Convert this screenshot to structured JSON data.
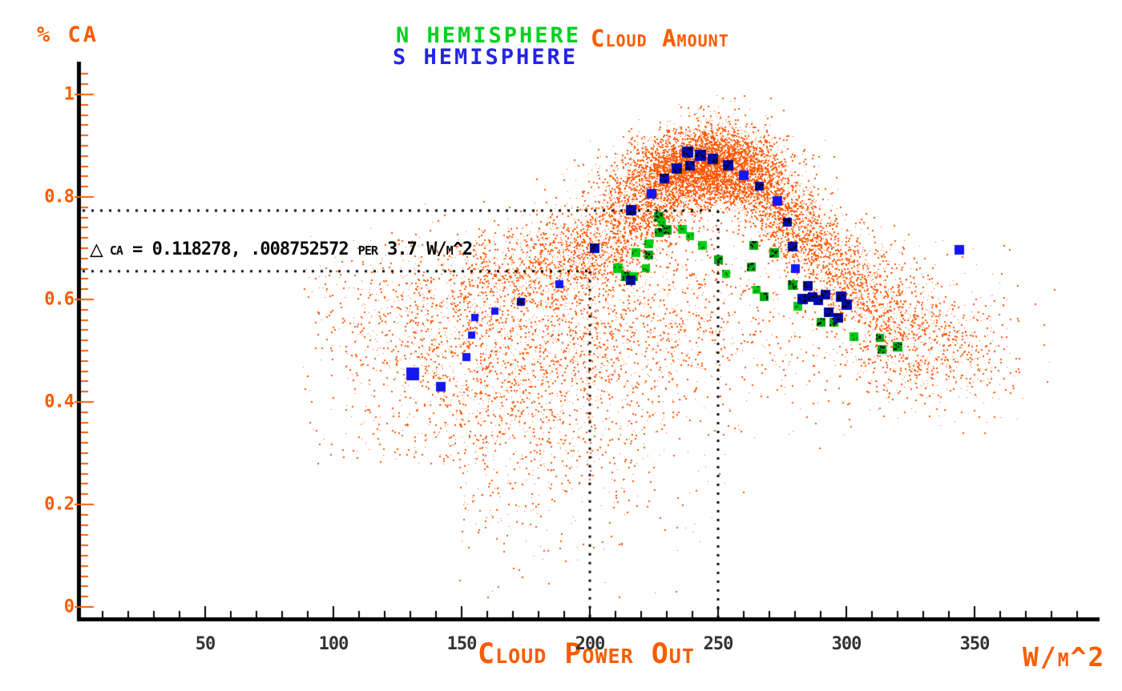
{
  "header": {
    "percent_ca": "% CA",
    "legend_n": "N HEMISPHERE",
    "legend_s": "S HEMISPHERE",
    "title": "Cloud Amount"
  },
  "annotation": {
    "delta_icon": "△",
    "text": "ca = 0.118278, .008752572 per 3.7 W/m^2"
  },
  "x_axis": {
    "label": "Cloud Power Out",
    "unit": "W/m^2",
    "major_ticks": [
      {
        "value": 50,
        "label": "50"
      },
      {
        "value": 100,
        "label": "100"
      },
      {
        "value": 150,
        "label": "150"
      },
      {
        "value": 200,
        "label": "200"
      },
      {
        "value": 250,
        "label": "250"
      },
      {
        "value": 300,
        "label": "300"
      },
      {
        "value": 350,
        "label": "350"
      }
    ],
    "minor_step": 10,
    "range": [
      0,
      398
    ]
  },
  "y_axis": {
    "label": "% CA",
    "major_ticks": [
      {
        "value": 1,
        "label": "1"
      },
      {
        "value": 0.8,
        "label": "0.8"
      },
      {
        "value": 0.6,
        "label": "0.6"
      },
      {
        "value": 0.4,
        "label": "0.4"
      },
      {
        "value": 0.2,
        "label": "0.2"
      },
      {
        "value": 0,
        "label": "0"
      }
    ],
    "minor_step": 0.02,
    "range": [
      0,
      1.06
    ]
  },
  "colors": {
    "orange_text": "#f95c00",
    "orange_dots": "#ff5500",
    "green_bright": "#00cc11",
    "green_dark": "#00a60e",
    "blue_bright": "#1616f2",
    "blue_dark": "#0008b0",
    "axis": "#000000",
    "dotted_line": "#0a0a0a",
    "x_tick_label": "#333333"
  },
  "chart_data": {
    "type": "scatter",
    "title": "Cloud Amount",
    "xlabel": "Cloud Power Out (W/m^2)",
    "ylabel": "% CA",
    "xlim": [
      0,
      398
    ],
    "ylim": [
      0,
      1.06
    ],
    "grid": false,
    "legend_position": "top-center",
    "annotation_guides": {
      "y_top": 0.7734,
      "y_bottom": 0.6552,
      "x_left": 200,
      "x_right": 250,
      "meaning": "delta CA = 0.118278 between CA at 250 and 200 W/m^2"
    },
    "series": [
      {
        "name": "N HEMISPHERE",
        "marker": "square",
        "color": "#00cc11",
        "dark_color": "#00a60e",
        "points": [
          [
            211,
            0.661,
            12,
            0
          ],
          [
            214,
            0.645,
            12,
            1
          ],
          [
            217,
            0.645,
            11,
            0
          ],
          [
            218,
            0.692,
            11,
            0
          ],
          [
            222,
            0.661,
            10,
            0
          ],
          [
            223,
            0.687,
            11,
            1
          ],
          [
            223,
            0.708,
            11,
            0
          ],
          [
            227,
            0.731,
            11,
            1
          ],
          [
            227,
            0.761,
            12,
            1
          ],
          [
            228,
            0.75,
            10,
            0
          ],
          [
            230,
            0.736,
            12,
            1
          ],
          [
            236,
            0.736,
            11,
            0
          ],
          [
            239,
            0.723,
            10,
            0
          ],
          [
            244,
            0.705,
            11,
            0
          ],
          [
            250,
            0.677,
            11,
            1
          ],
          [
            253,
            0.65,
            10,
            0
          ],
          [
            263,
            0.664,
            11,
            1
          ],
          [
            264,
            0.705,
            11,
            1
          ],
          [
            265,
            0.619,
            10,
            0
          ],
          [
            268,
            0.605,
            11,
            1
          ],
          [
            272,
            0.69,
            12,
            1
          ],
          [
            279,
            0.628,
            12,
            1
          ],
          [
            281,
            0.586,
            11,
            0
          ],
          [
            290,
            0.556,
            11,
            1
          ],
          [
            295,
            0.556,
            11,
            1
          ],
          [
            303,
            0.528,
            11,
            0
          ],
          [
            313,
            0.525,
            10,
            1
          ],
          [
            314,
            0.502,
            11,
            1
          ],
          [
            320,
            0.508,
            12,
            1
          ]
        ]
      },
      {
        "name": "S HEMISPHERE",
        "marker": "square",
        "color": "#1616f2",
        "dark_color": "#0008b0",
        "points": [
          [
            131,
            0.455,
            16,
            0
          ],
          [
            142,
            0.43,
            12,
            0
          ],
          [
            152,
            0.488,
            10,
            0
          ],
          [
            154,
            0.53,
            9,
            0
          ],
          [
            155,
            0.565,
            9,
            0
          ],
          [
            163,
            0.578,
            9,
            0
          ],
          [
            173,
            0.595,
            10,
            1
          ],
          [
            188,
            0.63,
            10,
            0
          ],
          [
            202,
            0.7,
            12,
            1
          ],
          [
            216,
            0.775,
            13,
            1
          ],
          [
            216,
            0.638,
            12,
            1
          ],
          [
            224,
            0.807,
            12,
            0
          ],
          [
            229,
            0.836,
            12,
            1
          ],
          [
            234,
            0.856,
            13,
            1
          ],
          [
            238,
            0.888,
            14,
            1
          ],
          [
            239,
            0.861,
            12,
            1
          ],
          [
            243,
            0.882,
            14,
            1
          ],
          [
            248,
            0.874,
            13,
            1
          ],
          [
            254,
            0.861,
            13,
            1
          ],
          [
            260,
            0.842,
            12,
            0
          ],
          [
            266,
            0.821,
            11,
            1
          ],
          [
            273,
            0.792,
            12,
            0
          ],
          [
            277,
            0.751,
            11,
            1
          ],
          [
            279,
            0.703,
            12,
            1
          ],
          [
            280,
            0.66,
            11,
            0
          ],
          [
            283,
            0.601,
            13,
            1
          ],
          [
            285,
            0.627,
            12,
            1
          ],
          [
            287,
            0.604,
            12,
            1
          ],
          [
            289,
            0.599,
            12,
            1
          ],
          [
            292,
            0.61,
            12,
            1
          ],
          [
            293,
            0.575,
            12,
            1
          ],
          [
            297,
            0.564,
            12,
            1
          ],
          [
            298,
            0.606,
            13,
            1
          ],
          [
            300,
            0.59,
            13,
            1
          ],
          [
            344,
            0.697,
            12,
            0
          ]
        ]
      },
      {
        "name": "Cloud Amount (all points cloud)",
        "marker": "dot",
        "color": "#ff5500",
        "generated": true,
        "generator": {
          "seed": 7,
          "band": {
            "count": 6500,
            "x_mean": 252,
            "x_sd": 45,
            "x_min": 150,
            "x_max": 368,
            "y_sd": 0.05,
            "curve": [
              [
                150,
                0.635
              ],
              [
                175,
                0.665
              ],
              [
                200,
                0.715
              ],
              [
                220,
                0.775
              ],
              [
                235,
                0.835
              ],
              [
                248,
                0.868
              ],
              [
                262,
                0.84
              ],
              [
                280,
                0.748
              ],
              [
                295,
                0.678
              ],
              [
                310,
                0.617
              ],
              [
                330,
                0.553
              ],
              [
                350,
                0.517
              ],
              [
                368,
                0.505
              ]
            ]
          },
          "clusters": [
            {
              "count": 2500,
              "cx": 244,
              "cy": 0.862,
              "sx": 15,
              "sy": 0.032
            },
            {
              "count": 2300,
              "cx": 172,
              "cy": 0.44,
              "sx": 36,
              "sy": 0.15,
              "kind": "lowerleft"
            },
            {
              "count": 1300,
              "cx": 212,
              "cy": 0.58,
              "sx": 40,
              "sy": 0.1,
              "kind": "mid"
            },
            {
              "count": 550,
              "cx": 322,
              "cy": 0.5,
              "sx": 22,
              "sy": 0.055
            },
            {
              "count": 450,
              "cx": 136,
              "cy": 0.585,
              "sx": 26,
              "sy": 0.075
            }
          ]
        }
      }
    ]
  }
}
